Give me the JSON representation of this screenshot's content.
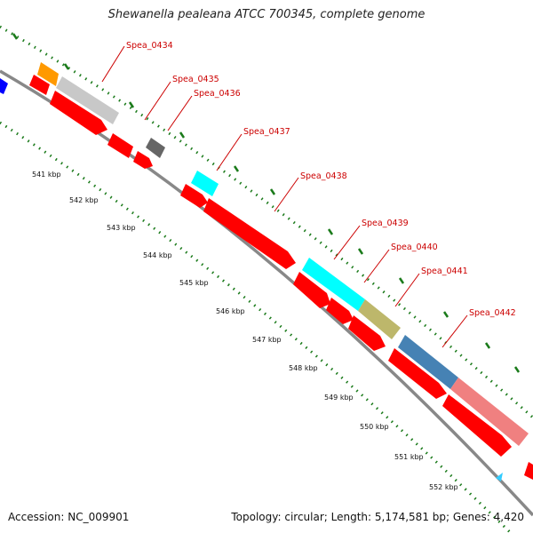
{
  "title": "Shewanella pealeana ATCC 700345, complete genome",
  "footer": {
    "accession": "Accession: NC_009901",
    "topology": "Topology: circular; Length: 5,174,581 bp; Genes: 4,420"
  },
  "colors": {
    "backbone": "#888888",
    "cds_red": "#ff0000",
    "tick_green": "#1a7a1a",
    "label_red": "#cc0000"
  },
  "kbp_labels": [
    "541 kbp",
    "542 kbp",
    "543 kbp",
    "544 kbp",
    "545 kbp",
    "546 kbp",
    "547 kbp",
    "548 kbp",
    "549 kbp",
    "550 kbp",
    "551 kbp",
    "552 kbp"
  ],
  "gene_labels": [
    "Spea_0434",
    "Spea_0435",
    "Spea_0436",
    "Spea_0437",
    "Spea_0438",
    "Spea_0439",
    "Spea_0440",
    "Spea_0441",
    "Spea_0442"
  ],
  "feature_colors": {
    "orange": "#ff9900",
    "light_gray": "#c8c8c8",
    "dark_gray": "#666666",
    "cyan": "#00ffff",
    "olive": "#bdb76b",
    "steel_blue": "#4682b4",
    "salmon": "#f08080",
    "blue": "#0000ff",
    "sky_blue": "#33ccff"
  }
}
